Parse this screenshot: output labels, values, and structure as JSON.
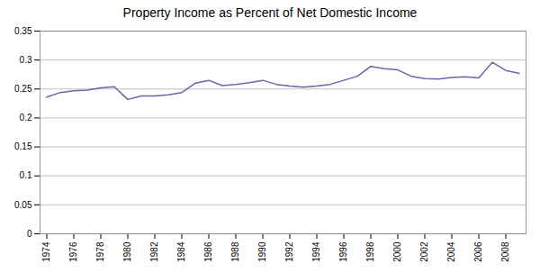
{
  "chart_data": {
    "type": "line",
    "title": "Property Income as Percent of Net Domestic Income",
    "x": [
      1974,
      1975,
      1976,
      1977,
      1978,
      1979,
      1980,
      1981,
      1982,
      1983,
      1984,
      1985,
      1986,
      1987,
      1988,
      1989,
      1990,
      1991,
      1992,
      1993,
      1994,
      1995,
      1996,
      1997,
      1998,
      1999,
      2000,
      2001,
      2002,
      2003,
      2004,
      2005,
      2006,
      2007,
      2008,
      2009
    ],
    "values": [
      0.236,
      0.244,
      0.247,
      0.248,
      0.252,
      0.254,
      0.232,
      0.238,
      0.238,
      0.24,
      0.244,
      0.26,
      0.265,
      0.256,
      0.258,
      0.261,
      0.265,
      0.258,
      0.255,
      0.253,
      0.255,
      0.258,
      0.265,
      0.272,
      0.289,
      0.285,
      0.283,
      0.272,
      0.268,
      0.267,
      0.27,
      0.271,
      0.269,
      0.296,
      0.282,
      0.277
    ],
    "color": "#6666aa",
    "xlim": [
      1973.5,
      2009.5
    ],
    "xticks": [
      1974,
      1976,
      1978,
      1980,
      1982,
      1984,
      1986,
      1988,
      1990,
      1992,
      1994,
      1996,
      1998,
      2000,
      2002,
      2004,
      2006,
      2008
    ],
    "ylim": [
      0,
      0.35
    ],
    "yticks": [
      0,
      0.05,
      0.1,
      0.15,
      0.2,
      0.25,
      0.3,
      0.35
    ],
    "grid": true
  }
}
